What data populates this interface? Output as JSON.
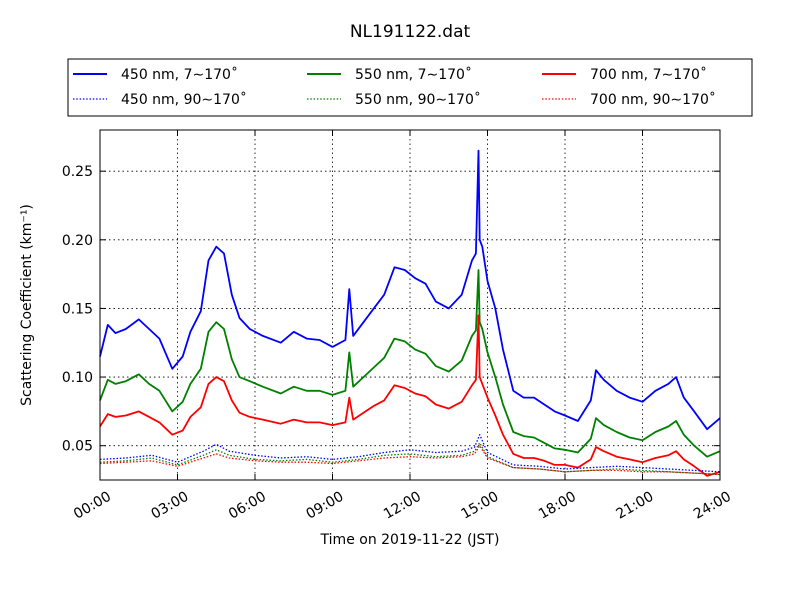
{
  "chart_data": {
    "type": "line",
    "title": "NL191122.dat",
    "xlabel": "Time on 2019-11-22 (JST)",
    "ylabel": "Scattering Coefficient (km⁻¹)",
    "x_ticks": [
      "00:00",
      "03:00",
      "06:00",
      "09:00",
      "12:00",
      "15:00",
      "18:00",
      "21:00",
      "24:00"
    ],
    "y_ticks": [
      "0.05",
      "0.10",
      "0.15",
      "0.20",
      "0.25"
    ],
    "xlim": [
      0,
      24
    ],
    "ylim": [
      0.025,
      0.28
    ],
    "grid": true,
    "legend_position": "top",
    "series": [
      {
        "name": "450 nm, 7∼170˚",
        "color": "#0000ff",
        "style": "solid",
        "x": [
          0,
          0.3,
          0.6,
          1,
          1.5,
          1.9,
          2.3,
          2.8,
          3.2,
          3.5,
          3.9,
          4.2,
          4.5,
          4.8,
          5.1,
          5.4,
          5.8,
          6.3,
          7,
          7.5,
          8,
          8.5,
          9,
          9.5,
          9.65,
          9.8,
          10.2,
          10.6,
          11,
          11.4,
          11.8,
          12.2,
          12.6,
          13,
          13.5,
          14,
          14.4,
          14.55,
          14.65,
          14.7,
          14.8,
          15,
          15.3,
          15.6,
          16,
          16.4,
          16.8,
          17.2,
          17.6,
          18,
          18.5,
          19,
          19.2,
          19.5,
          20,
          20.5,
          21,
          21.5,
          22,
          22.3,
          22.6,
          23,
          23.5,
          24
        ],
        "y": [
          0.115,
          0.138,
          0.132,
          0.135,
          0.142,
          0.135,
          0.128,
          0.106,
          0.115,
          0.133,
          0.148,
          0.185,
          0.195,
          0.19,
          0.16,
          0.143,
          0.135,
          0.13,
          0.125,
          0.133,
          0.128,
          0.127,
          0.122,
          0.127,
          0.164,
          0.13,
          0.14,
          0.15,
          0.16,
          0.18,
          0.178,
          0.172,
          0.168,
          0.155,
          0.15,
          0.16,
          0.185,
          0.19,
          0.265,
          0.2,
          0.195,
          0.17,
          0.15,
          0.12,
          0.09,
          0.085,
          0.085,
          0.08,
          0.075,
          0.072,
          0.068,
          0.083,
          0.105,
          0.098,
          0.09,
          0.085,
          0.082,
          0.09,
          0.095,
          0.1,
          0.085,
          0.075,
          0.062,
          0.07
        ]
      },
      {
        "name": "550 nm, 7∼170˚",
        "color": "#008000",
        "style": "solid",
        "x": [
          0,
          0.3,
          0.6,
          1,
          1.5,
          1.9,
          2.3,
          2.8,
          3.2,
          3.5,
          3.9,
          4.2,
          4.5,
          4.8,
          5.1,
          5.4,
          5.8,
          6.3,
          7,
          7.5,
          8,
          8.5,
          9,
          9.5,
          9.65,
          9.8,
          10.2,
          10.6,
          11,
          11.4,
          11.8,
          12.2,
          12.6,
          13,
          13.5,
          14,
          14.4,
          14.55,
          14.65,
          14.7,
          14.8,
          15,
          15.3,
          15.6,
          16,
          16.4,
          16.8,
          17.2,
          17.6,
          18,
          18.5,
          19,
          19.2,
          19.5,
          20,
          20.5,
          21,
          21.5,
          22,
          22.3,
          22.6,
          23,
          23.5,
          24
        ],
        "y": [
          0.083,
          0.098,
          0.095,
          0.097,
          0.102,
          0.095,
          0.09,
          0.075,
          0.082,
          0.095,
          0.106,
          0.133,
          0.14,
          0.135,
          0.113,
          0.1,
          0.097,
          0.093,
          0.088,
          0.093,
          0.09,
          0.09,
          0.087,
          0.09,
          0.118,
          0.093,
          0.1,
          0.107,
          0.114,
          0.128,
          0.126,
          0.12,
          0.117,
          0.108,
          0.104,
          0.112,
          0.13,
          0.134,
          0.178,
          0.14,
          0.135,
          0.118,
          0.1,
          0.08,
          0.06,
          0.057,
          0.056,
          0.052,
          0.048,
          0.047,
          0.045,
          0.055,
          0.07,
          0.065,
          0.06,
          0.056,
          0.054,
          0.06,
          0.064,
          0.068,
          0.058,
          0.05,
          0.042,
          0.046
        ]
      },
      {
        "name": "700 nm, 7∼170˚",
        "color": "#ff0000",
        "style": "solid",
        "x": [
          0,
          0.3,
          0.6,
          1,
          1.5,
          1.9,
          2.3,
          2.8,
          3.2,
          3.5,
          3.9,
          4.2,
          4.5,
          4.8,
          5.1,
          5.4,
          5.8,
          6.3,
          7,
          7.5,
          8,
          8.5,
          9,
          9.5,
          9.65,
          9.8,
          10.2,
          10.6,
          11,
          11.4,
          11.8,
          12.2,
          12.6,
          13,
          13.5,
          14,
          14.4,
          14.55,
          14.65,
          14.7,
          14.8,
          15,
          15.3,
          15.6,
          16,
          16.4,
          16.8,
          17.2,
          17.6,
          18,
          18.5,
          19,
          19.2,
          19.5,
          20,
          20.5,
          21,
          21.5,
          22,
          22.3,
          22.6,
          23,
          23.5,
          24
        ],
        "y": [
          0.064,
          0.073,
          0.071,
          0.072,
          0.075,
          0.071,
          0.067,
          0.058,
          0.061,
          0.071,
          0.078,
          0.095,
          0.1,
          0.097,
          0.083,
          0.074,
          0.071,
          0.069,
          0.066,
          0.069,
          0.067,
          0.067,
          0.065,
          0.067,
          0.085,
          0.069,
          0.074,
          0.079,
          0.083,
          0.094,
          0.092,
          0.088,
          0.086,
          0.08,
          0.077,
          0.082,
          0.094,
          0.098,
          0.145,
          0.1,
          0.095,
          0.085,
          0.072,
          0.058,
          0.044,
          0.041,
          0.041,
          0.039,
          0.036,
          0.036,
          0.034,
          0.04,
          0.049,
          0.046,
          0.042,
          0.04,
          0.038,
          0.041,
          0.043,
          0.046,
          0.04,
          0.035,
          0.028,
          0.031
        ]
      },
      {
        "name": "450 nm, 90∼170˚",
        "color": "#0000ff",
        "style": "dotted",
        "x": [
          0,
          1,
          2,
          3,
          4,
          4.5,
          5,
          6,
          7,
          8,
          9,
          10,
          11,
          12,
          13,
          14,
          14.5,
          14.7,
          15,
          16,
          17,
          18,
          19,
          20,
          21,
          22,
          23,
          24
        ],
        "y": [
          0.04,
          0.041,
          0.043,
          0.038,
          0.046,
          0.051,
          0.046,
          0.043,
          0.041,
          0.042,
          0.04,
          0.042,
          0.045,
          0.047,
          0.045,
          0.046,
          0.049,
          0.058,
          0.045,
          0.036,
          0.035,
          0.033,
          0.034,
          0.035,
          0.034,
          0.033,
          0.032,
          0.031
        ]
      },
      {
        "name": "550 nm, 90∼170˚",
        "color": "#008000",
        "style": "dotted",
        "x": [
          0,
          1,
          2,
          3,
          4,
          4.5,
          5,
          6,
          7,
          8,
          9,
          10,
          11,
          12,
          13,
          14,
          14.5,
          14.7,
          15,
          16,
          17,
          18,
          19,
          20,
          21,
          22,
          23,
          24
        ],
        "y": [
          0.038,
          0.039,
          0.041,
          0.036,
          0.043,
          0.047,
          0.043,
          0.04,
          0.039,
          0.04,
          0.038,
          0.04,
          0.043,
          0.044,
          0.042,
          0.043,
          0.046,
          0.052,
          0.042,
          0.034,
          0.033,
          0.031,
          0.032,
          0.033,
          0.032,
          0.031,
          0.03,
          0.029
        ]
      },
      {
        "name": "700 nm, 90∼170˚",
        "color": "#ff0000",
        "style": "dotted",
        "x": [
          0,
          1,
          2,
          3,
          4,
          4.5,
          5,
          6,
          7,
          8,
          9,
          10,
          11,
          12,
          13,
          14,
          14.5,
          14.7,
          15,
          16,
          17,
          18,
          19,
          20,
          21,
          22,
          23,
          24
        ],
        "y": [
          0.037,
          0.038,
          0.039,
          0.035,
          0.041,
          0.044,
          0.041,
          0.039,
          0.038,
          0.038,
          0.037,
          0.039,
          0.041,
          0.042,
          0.041,
          0.042,
          0.044,
          0.05,
          0.041,
          0.034,
          0.033,
          0.031,
          0.032,
          0.032,
          0.031,
          0.031,
          0.03,
          0.029
        ]
      }
    ]
  }
}
